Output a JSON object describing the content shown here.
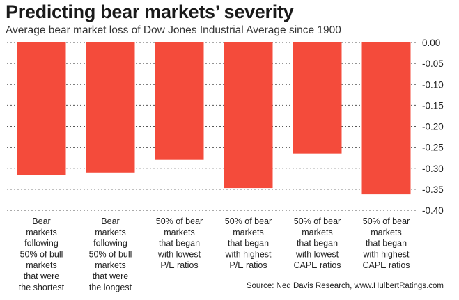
{
  "chart_data": {
    "type": "bar",
    "title": "Predicting bear markets’ severity",
    "subtitle": "Average bear market loss of Dow Jones Industrial Average since 1900",
    "categories": [
      [
        "Bear",
        "markets",
        "following",
        "50% of bull",
        "markets",
        "that were",
        "the shortest"
      ],
      [
        "Bear",
        "markets",
        "following",
        "50% of bull",
        "markets",
        "that were",
        "the longest"
      ],
      [
        "50% of bear",
        "markets",
        "that began",
        "with lowest",
        "P/E ratios"
      ],
      [
        "50% of bear",
        "markets",
        "that began",
        "with highest",
        "P/E ratios"
      ],
      [
        "50% of bear",
        "markets",
        "that began",
        "with lowest",
        "CAPE ratios"
      ],
      [
        "50% of bear",
        "markets",
        "that began",
        "with highest",
        "CAPE ratios"
      ]
    ],
    "values": [
      -0.317,
      -0.31,
      -0.28,
      -0.347,
      -0.265,
      -0.362
    ],
    "ylim": [
      -0.4,
      0.0
    ],
    "yticks": [
      "0.00",
      "-0.05",
      "-0.10",
      "-0.15",
      "-0.20",
      "-0.25",
      "-0.30",
      "-0.35",
      "-0.40"
    ],
    "grid": true,
    "axis_side": "right",
    "xlabel": "",
    "ylabel": "",
    "source": "Source: Ned Davis Research, www.HulbertRatings.com",
    "colors": {
      "bar": "#f44b3b",
      "grid": "#555555"
    }
  }
}
